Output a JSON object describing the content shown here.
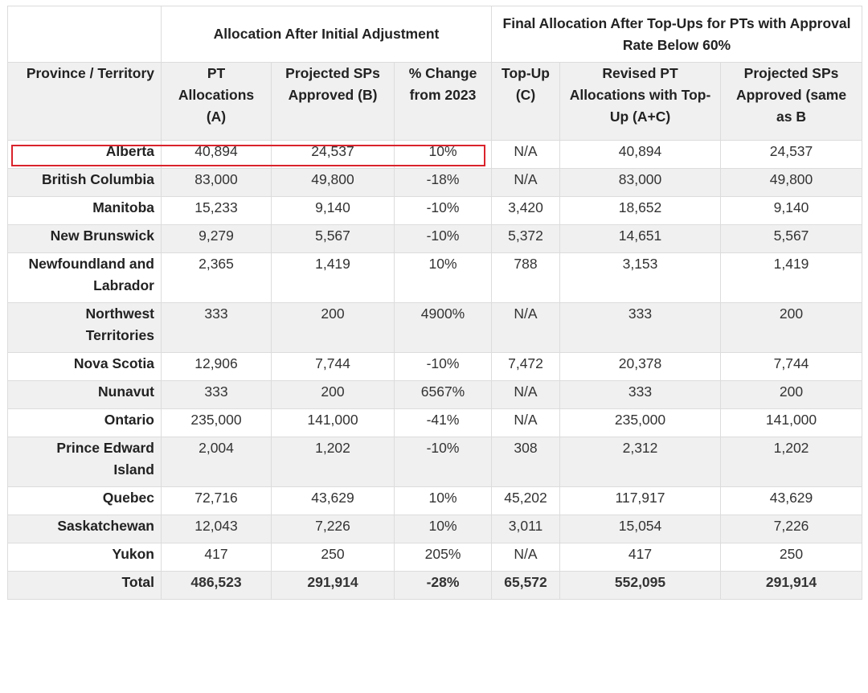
{
  "header": {
    "group1": "Allocation After Initial Adjustment",
    "group2": "Final Allocation After Top-Ups for PTs with Approval Rate Below 60%"
  },
  "columns": [
    "Province / Territory",
    "PT Allocations (A)",
    "Projected SPs Approved (B)",
    "% Change from 2023",
    "Top-Up (C)",
    "Revised PT Allocations with Top-Up (A+C)",
    "Projected SPs Approved (same as B"
  ],
  "rows": [
    {
      "name": "Alberta",
      "a": "40,894",
      "b": "24,537",
      "pct": "10%",
      "c": "N/A",
      "ac": "40,894",
      "b2": "24,537"
    },
    {
      "name": "British Columbia",
      "a": "83,000",
      "b": "49,800",
      "pct": "-18%",
      "c": "N/A",
      "ac": "83,000",
      "b2": "49,800"
    },
    {
      "name": "Manitoba",
      "a": "15,233",
      "b": "9,140",
      "pct": "-10%",
      "c": "3,420",
      "ac": "18,652",
      "b2": "9,140"
    },
    {
      "name": "New Brunswick",
      "a": "9,279",
      "b": "5,567",
      "pct": "-10%",
      "c": "5,372",
      "ac": "14,651",
      "b2": "5,567"
    },
    {
      "name": "Newfoundland and Labrador",
      "a": "2,365",
      "b": "1,419",
      "pct": "10%",
      "c": "788",
      "ac": "3,153",
      "b2": "1,419"
    },
    {
      "name": "Northwest Territories",
      "a": "333",
      "b": "200",
      "pct": "4900%",
      "c": "N/A",
      "ac": "333",
      "b2": "200"
    },
    {
      "name": "Nova Scotia",
      "a": "12,906",
      "b": "7,744",
      "pct": "-10%",
      "c": "7,472",
      "ac": "20,378",
      "b2": "7,744"
    },
    {
      "name": "Nunavut",
      "a": "333",
      "b": "200",
      "pct": "6567%",
      "c": "N/A",
      "ac": "333",
      "b2": "200"
    },
    {
      "name": "Ontario",
      "a": "235,000",
      "b": "141,000",
      "pct": "-41%",
      "c": "N/A",
      "ac": "235,000",
      "b2": "141,000"
    },
    {
      "name": "Prince Edward Island",
      "a": "2,004",
      "b": "1,202",
      "pct": "-10%",
      "c": "308",
      "ac": "2,312",
      "b2": "1,202"
    },
    {
      "name": "Quebec",
      "a": "72,716",
      "b": "43,629",
      "pct": "10%",
      "c": "45,202",
      "ac": "117,917",
      "b2": "43,629"
    },
    {
      "name": "Saskatchewan",
      "a": "12,043",
      "b": "7,226",
      "pct": "10%",
      "c": "3,011",
      "ac": "15,054",
      "b2": "7,226"
    },
    {
      "name": "Yukon",
      "a": "417",
      "b": "250",
      "pct": "205%",
      "c": "N/A",
      "ac": "417",
      "b2": "250"
    },
    {
      "name": "Total",
      "a": "486,523",
      "b": "291,914",
      "pct": "-28%",
      "c": "65,572",
      "ac": "552,095",
      "b2": "291,914"
    }
  ],
  "highlight_color": "#d9232b"
}
